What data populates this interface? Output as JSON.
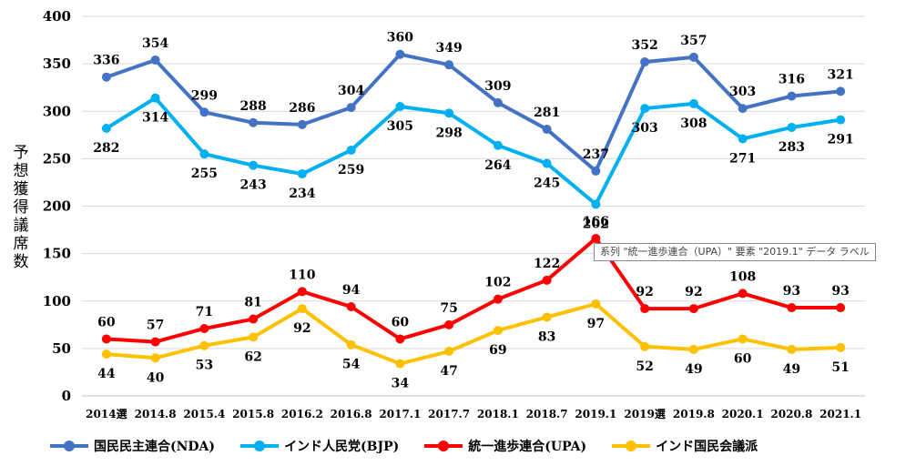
{
  "chart_data": {
    "type": "line",
    "ylabel": "予想獲得議席数",
    "ylim": [
      0,
      400
    ],
    "yticks": [
      0,
      50,
      100,
      150,
      200,
      250,
      300,
      350,
      400
    ],
    "grid": true,
    "legend_position": "bottom",
    "categories": [
      "2014選",
      "2014.8",
      "2015.4",
      "2015.8",
      "2016.2",
      "2016.8",
      "2017.1",
      "2017.7",
      "2018.1",
      "2018.7",
      "2019.1",
      "2019選",
      "2019.8",
      "2020.1",
      "2020.8",
      "2021.1"
    ],
    "series": [
      {
        "name": "国民民主連合(NDA)",
        "color": "#4472C4",
        "label_pos": "above",
        "values": [
          336,
          354,
          299,
          288,
          286,
          304,
          360,
          349,
          309,
          281,
          237,
          352,
          357,
          303,
          316,
          321
        ]
      },
      {
        "name": "インド人民党(BJP)",
        "color": "#00B0F0",
        "label_pos": "below",
        "values": [
          282,
          314,
          255,
          243,
          234,
          259,
          305,
          298,
          264,
          245,
          202,
          303,
          308,
          271,
          283,
          291
        ]
      },
      {
        "name": "統一進歩連合(UPA)",
        "color": "#FF0000",
        "label_pos": "above",
        "values": [
          60,
          57,
          71,
          81,
          110,
          94,
          60,
          75,
          102,
          122,
          166,
          92,
          92,
          108,
          93,
          93
        ]
      },
      {
        "name": "インド国民会議派",
        "color": "#FFC000",
        "label_pos": "below",
        "values": [
          44,
          40,
          53,
          62,
          92,
          54,
          34,
          47,
          69,
          83,
          97,
          52,
          49,
          60,
          49,
          51
        ]
      }
    ],
    "tooltip": "系列 \"統一進歩連合（UPA）\" 要素 \"2019.1\" データ ラベル"
  }
}
